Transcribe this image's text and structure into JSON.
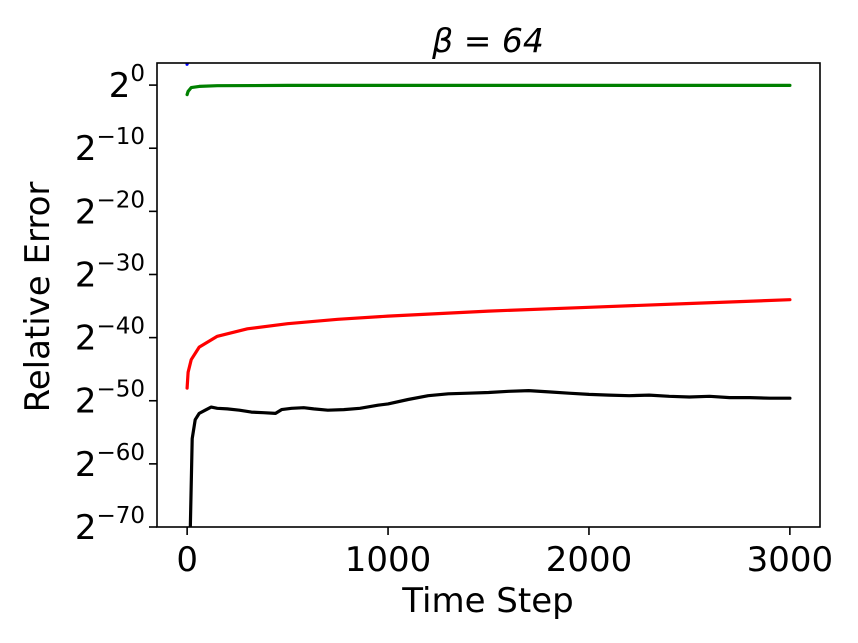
{
  "chart_data": {
    "type": "line",
    "title": "β = 64",
    "xlabel": "Time Step",
    "ylabel": "Relative Error",
    "xlim": [
      -150,
      3150
    ],
    "ylim_log2": [
      -70,
      3.5
    ],
    "y_scale": "log2",
    "grid": false,
    "x_ticks": [
      {
        "value": 0,
        "label": "0"
      },
      {
        "value": 1000,
        "label": "1000"
      },
      {
        "value": 2000,
        "label": "2000"
      },
      {
        "value": 3000,
        "label": "3000"
      }
    ],
    "y_ticks": [
      {
        "exp": 0,
        "base": "2",
        "sup": "0"
      },
      {
        "exp": -10,
        "base": "2",
        "sup": "−10"
      },
      {
        "exp": -20,
        "base": "2",
        "sup": "−20"
      },
      {
        "exp": -30,
        "base": "2",
        "sup": "−30"
      },
      {
        "exp": -40,
        "base": "2",
        "sup": "−40"
      },
      {
        "exp": -50,
        "base": "2",
        "sup": "−50"
      },
      {
        "exp": -60,
        "base": "2",
        "sup": "−60"
      },
      {
        "exp": -70,
        "base": "2",
        "sup": "−70"
      }
    ],
    "series": [
      {
        "color": "#0000ff",
        "points_log2": [
          [
            0,
            3.3
          ],
          [
            1,
            3.5
          ]
        ]
      },
      {
        "color": "#008000",
        "points_log2": [
          [
            0,
            -1.5
          ],
          [
            5,
            -1.0
          ],
          [
            20,
            -0.4
          ],
          [
            60,
            -0.2
          ],
          [
            150,
            -0.1
          ],
          [
            500,
            -0.05
          ],
          [
            1000,
            -0.05
          ],
          [
            2000,
            -0.05
          ],
          [
            3000,
            -0.05
          ]
        ]
      },
      {
        "color": "#ff0000",
        "points_log2": [
          [
            0,
            -48
          ],
          [
            5,
            -45.5
          ],
          [
            20,
            -43.5
          ],
          [
            60,
            -41.5
          ],
          [
            150,
            -39.8
          ],
          [
            300,
            -38.6
          ],
          [
            500,
            -37.8
          ],
          [
            750,
            -37.1
          ],
          [
            1000,
            -36.6
          ],
          [
            1500,
            -35.8
          ],
          [
            2000,
            -35.2
          ],
          [
            2500,
            -34.6
          ],
          [
            3000,
            -34.0
          ]
        ]
      },
      {
        "color": "#000000",
        "points_log2": [
          [
            15,
            -71
          ],
          [
            25,
            -56
          ],
          [
            40,
            -53
          ],
          [
            60,
            -52
          ],
          [
            90,
            -51.5
          ],
          [
            120,
            -51.0
          ],
          [
            150,
            -51.2
          ],
          [
            200,
            -51.3
          ],
          [
            260,
            -51.5
          ],
          [
            320,
            -51.8
          ],
          [
            380,
            -51.9
          ],
          [
            440,
            -52.0
          ],
          [
            470,
            -51.4
          ],
          [
            520,
            -51.2
          ],
          [
            580,
            -51.1
          ],
          [
            630,
            -51.3
          ],
          [
            700,
            -51.5
          ],
          [
            780,
            -51.4
          ],
          [
            860,
            -51.2
          ],
          [
            950,
            -50.7
          ],
          [
            1000,
            -50.5
          ],
          [
            1100,
            -49.8
          ],
          [
            1200,
            -49.2
          ],
          [
            1300,
            -48.9
          ],
          [
            1400,
            -48.8
          ],
          [
            1500,
            -48.7
          ],
          [
            1600,
            -48.5
          ],
          [
            1700,
            -48.4
          ],
          [
            1800,
            -48.6
          ],
          [
            1900,
            -48.8
          ],
          [
            2000,
            -49.0
          ],
          [
            2100,
            -49.1
          ],
          [
            2200,
            -49.2
          ],
          [
            2300,
            -49.1
          ],
          [
            2400,
            -49.3
          ],
          [
            2500,
            -49.4
          ],
          [
            2600,
            -49.3
          ],
          [
            2700,
            -49.5
          ],
          [
            2800,
            -49.5
          ],
          [
            2900,
            -49.6
          ],
          [
            3000,
            -49.6
          ]
        ]
      }
    ]
  }
}
